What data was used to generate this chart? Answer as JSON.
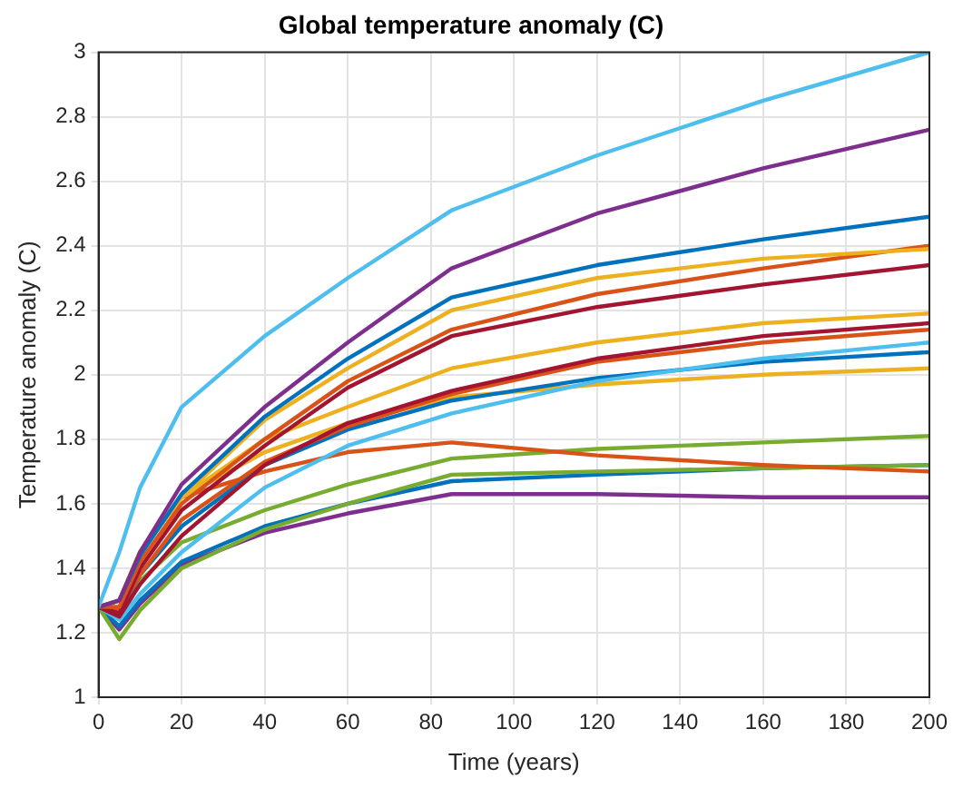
{
  "chart_data": {
    "type": "line",
    "title": "Global temperature anomaly (C)",
    "xlabel": "Time (years)",
    "ylabel": "Temperature anomaly (C)",
    "x": [
      0,
      5,
      10,
      20,
      40,
      60,
      85,
      120,
      160,
      200
    ],
    "xlim": [
      0,
      200
    ],
    "xticks": [
      0,
      20,
      40,
      60,
      80,
      100,
      120,
      140,
      160,
      180,
      200
    ],
    "ylim": [
      1,
      3
    ],
    "yticks": [
      1,
      1.2,
      1.4,
      1.6,
      1.8,
      2,
      2.2,
      2.4,
      2.6,
      2.8,
      3
    ],
    "grid": true,
    "legend": false,
    "marker": "none",
    "line_style": "solid",
    "series": [
      {
        "color": "#4dbeee",
        "values": [
          1.28,
          1.45,
          1.65,
          1.9,
          2.12,
          2.3,
          2.51,
          2.68,
          2.85,
          3.0
        ]
      },
      {
        "color": "#7e2f8e",
        "values": [
          1.28,
          1.3,
          1.45,
          1.66,
          1.9,
          2.1,
          2.33,
          2.5,
          2.64,
          2.76
        ]
      },
      {
        "color": "#0072bd",
        "values": [
          1.28,
          1.3,
          1.44,
          1.63,
          1.87,
          2.05,
          2.24,
          2.34,
          2.42,
          2.49
        ]
      },
      {
        "color": "#edb120",
        "values": [
          1.28,
          1.3,
          1.45,
          1.62,
          1.86,
          2.02,
          2.2,
          2.3,
          2.36,
          2.39
        ]
      },
      {
        "color": "#d95319",
        "values": [
          1.28,
          1.28,
          1.42,
          1.6,
          1.8,
          1.98,
          2.14,
          2.25,
          2.33,
          2.4
        ]
      },
      {
        "color": "#a2142f",
        "values": [
          1.28,
          1.26,
          1.4,
          1.58,
          1.78,
          1.96,
          2.12,
          2.21,
          2.28,
          2.34
        ]
      },
      {
        "color": "#edb120",
        "values": [
          1.28,
          1.3,
          1.45,
          1.62,
          1.8,
          1.9,
          2.02,
          2.1,
          2.16,
          2.19
        ]
      },
      {
        "color": "#a2142f",
        "values": [
          1.28,
          1.25,
          1.35,
          1.5,
          1.72,
          1.85,
          1.95,
          2.05,
          2.12,
          2.16
        ]
      },
      {
        "color": "#d95319",
        "values": [
          1.28,
          1.27,
          1.38,
          1.55,
          1.73,
          1.84,
          1.94,
          2.04,
          2.1,
          2.14
        ]
      },
      {
        "color": "#4dbeee",
        "values": [
          1.28,
          1.24,
          1.32,
          1.45,
          1.65,
          1.78,
          1.88,
          1.98,
          2.05,
          2.1
        ]
      },
      {
        "color": "#0072bd",
        "values": [
          1.28,
          1.26,
          1.38,
          1.53,
          1.72,
          1.83,
          1.92,
          1.99,
          2.04,
          2.07
        ]
      },
      {
        "color": "#edb120",
        "values": [
          1.28,
          1.3,
          1.45,
          1.62,
          1.76,
          1.85,
          1.93,
          1.97,
          2.0,
          2.02
        ]
      },
      {
        "color": "#d95319",
        "values": [
          1.28,
          1.3,
          1.45,
          1.62,
          1.7,
          1.76,
          1.79,
          1.75,
          1.72,
          1.7
        ]
      },
      {
        "color": "#77ac30",
        "values": [
          1.28,
          1.26,
          1.36,
          1.48,
          1.58,
          1.66,
          1.74,
          1.77,
          1.79,
          1.81
        ]
      },
      {
        "color": "#77ac30",
        "values": [
          1.28,
          1.18,
          1.27,
          1.4,
          1.52,
          1.6,
          1.69,
          1.7,
          1.71,
          1.72
        ]
      },
      {
        "color": "#0072bd",
        "values": [
          1.28,
          1.22,
          1.3,
          1.42,
          1.53,
          1.6,
          1.67,
          1.69,
          1.71,
          1.72
        ]
      },
      {
        "color": "#7e2f8e",
        "values": [
          1.28,
          1.21,
          1.29,
          1.41,
          1.51,
          1.57,
          1.63,
          1.63,
          1.62,
          1.62
        ]
      }
    ]
  }
}
